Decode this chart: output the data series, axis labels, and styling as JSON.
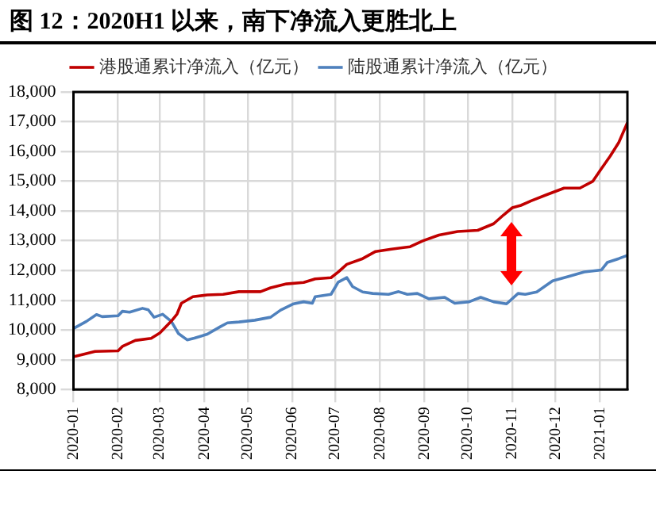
{
  "chart_data": {
    "type": "line",
    "title": "图 12：2020H1 以来，南下净流入更胜北上",
    "series": [
      {
        "name": "港股通累计净流入（亿元）",
        "color": "#c00000",
        "x": [
          "2020-01-01",
          "2020-01-16",
          "2020-02-01",
          "2020-02-04",
          "2020-02-13",
          "2020-02-24",
          "2020-03-01",
          "2020-03-09",
          "2020-03-13",
          "2020-03-16",
          "2020-03-24",
          "2020-04-03",
          "2020-04-14",
          "2020-04-25",
          "2020-05-10",
          "2020-05-17",
          "2020-05-28",
          "2020-06-09",
          "2020-06-17",
          "2020-06-28",
          "2020-07-03",
          "2020-07-09",
          "2020-07-20",
          "2020-07-29",
          "2020-08-09",
          "2020-08-22",
          "2020-08-31",
          "2020-09-11",
          "2020-09-24",
          "2020-10-08",
          "2020-10-19",
          "2020-10-26",
          "2020-11-01",
          "2020-11-07",
          "2020-11-14",
          "2020-11-25",
          "2020-12-07",
          "2020-12-18",
          "2020-12-27",
          "2021-01-02",
          "2021-01-08",
          "2021-01-14",
          "2021-01-20"
        ],
        "values": [
          9100,
          9280,
          9300,
          9450,
          9650,
          9720,
          9900,
          10300,
          10540,
          10900,
          11120,
          11180,
          11200,
          11290,
          11290,
          11420,
          11550,
          11600,
          11720,
          11760,
          11950,
          12210,
          12400,
          12640,
          12720,
          12800,
          13000,
          13190,
          13310,
          13350,
          13570,
          13870,
          14110,
          14190,
          14340,
          14550,
          14770,
          14770,
          15000,
          15430,
          15840,
          16300,
          16970
        ]
      },
      {
        "name": "陆股通累计净流入（亿元）",
        "color": "#4f81bd",
        "x": [
          "2020-01-01",
          "2020-01-10",
          "2020-01-17",
          "2020-01-21",
          "2020-02-01",
          "2020-02-04",
          "2020-02-09",
          "2020-02-18",
          "2020-02-22",
          "2020-02-26",
          "2020-03-03",
          "2020-03-09",
          "2020-03-14",
          "2020-03-20",
          "2020-03-25",
          "2020-04-03",
          "2020-04-12",
          "2020-04-17",
          "2020-04-25",
          "2020-05-06",
          "2020-05-17",
          "2020-05-24",
          "2020-06-02",
          "2020-06-09",
          "2020-06-15",
          "2020-06-17",
          "2020-06-28",
          "2020-07-03",
          "2020-07-09",
          "2020-07-13",
          "2020-07-20",
          "2020-07-27",
          "2020-08-07",
          "2020-08-14",
          "2020-08-20",
          "2020-08-27",
          "2020-09-04",
          "2020-09-15",
          "2020-09-22",
          "2020-10-02",
          "2020-10-10",
          "2020-10-19",
          "2020-10-28",
          "2020-11-05",
          "2020-11-10",
          "2020-11-18",
          "2020-11-29",
          "2020-12-10",
          "2020-12-21",
          "2021-01-02",
          "2021-01-06",
          "2021-01-14",
          "2021-01-20"
        ],
        "values": [
          10050,
          10290,
          10520,
          10450,
          10480,
          10630,
          10600,
          10730,
          10680,
          10430,
          10530,
          10290,
          9880,
          9670,
          9730,
          9860,
          10110,
          10240,
          10270,
          10330,
          10430,
          10670,
          10880,
          10950,
          10900,
          11120,
          11200,
          11610,
          11760,
          11460,
          11280,
          11230,
          11200,
          11290,
          11200,
          11230,
          11050,
          11100,
          10900,
          10950,
          11100,
          10950,
          10880,
          11230,
          11200,
          11280,
          11650,
          11800,
          11950,
          12020,
          12270,
          12400,
          12510
        ]
      }
    ],
    "xlim": [
      "2020-01-01",
      "2021-01-20"
    ],
    "xticks": [
      "2020-01",
      "2020-02",
      "2020-03",
      "2020-04",
      "2020-05",
      "2020-06",
      "2020-07",
      "2020-08",
      "2020-09",
      "2020-10",
      "2020-11",
      "2020-12",
      "2021-01"
    ],
    "ylim": [
      8000,
      18000
    ],
    "yticks": [
      {
        "value": 8000,
        "label": "8,000"
      },
      {
        "value": 9000,
        "label": "9,000"
      },
      {
        "value": 10000,
        "label": "10,000"
      },
      {
        "value": 11000,
        "label": "11,000"
      },
      {
        "value": 12000,
        "label": "12,000"
      },
      {
        "value": 13000,
        "label": "13,000"
      },
      {
        "value": 14000,
        "label": "14,000"
      },
      {
        "value": 15000,
        "label": "15,000"
      },
      {
        "value": 16000,
        "label": "16,000"
      },
      {
        "value": 17000,
        "label": "17,000"
      },
      {
        "value": 18000,
        "label": "18,000"
      }
    ],
    "grid": true,
    "legend": "top",
    "marker": "none",
    "line_style": "solid"
  }
}
